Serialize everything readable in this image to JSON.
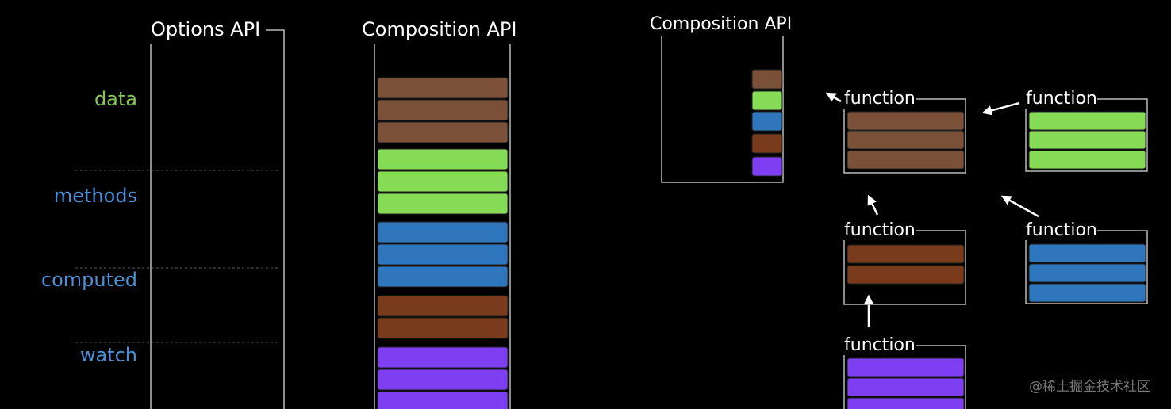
{
  "left": {
    "title": "Options API",
    "options": [
      "data",
      "methods",
      "computed",
      "watch"
    ]
  },
  "middle": {
    "title": "Composition API"
  },
  "right": {
    "title": "Composition API",
    "functions": [
      {
        "label": "function"
      },
      {
        "label": "function"
      },
      {
        "label": "function"
      },
      {
        "label": "function"
      },
      {
        "label": "function"
      }
    ]
  },
  "watermark": "@稀土掘金技术社区"
}
